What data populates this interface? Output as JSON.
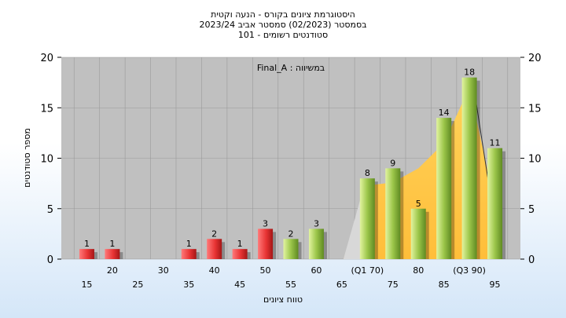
{
  "header": {
    "title_lines": [
      "היסטוגרמת ציונים בקורס - הנעה וקטית",
      "בסמסטר  (02/2023)  סמסטר אביב 2023/24",
      "סטודנטים רשומים - 101"
    ]
  },
  "chart_data": {
    "type": "bar",
    "legend_text": "Final_A : במשיווה",
    "xlabel": "טווח ציונים",
    "ylabel": "מספר סטודנטים",
    "ylim": [
      0,
      20
    ],
    "yticks": [
      0,
      5,
      10,
      15,
      20
    ],
    "grid": true,
    "x_ticks_top_row": [
      "20",
      "30",
      "40",
      "50",
      "60",
      "(Q1 70)",
      "80",
      "(Q3 90)"
    ],
    "x_ticks_bottom_row": [
      "15",
      "25",
      "35",
      "45",
      "55",
      "65",
      "75",
      "85",
      "95"
    ],
    "categories": [
      "15",
      "20",
      "25",
      "30",
      "35",
      "40",
      "45",
      "50",
      "55",
      "60",
      "65",
      "70",
      "75",
      "80",
      "85",
      "90",
      "95"
    ],
    "values": [
      1,
      1,
      0,
      0,
      1,
      2,
      1,
      3,
      2,
      3,
      0,
      8,
      9,
      5,
      14,
      18,
      11
    ],
    "data_labels": [
      "1",
      "1",
      "",
      "",
      "1",
      "2",
      "1",
      "3",
      "2",
      "3",
      "",
      "8",
      "9",
      "5",
      "14",
      "18",
      "11"
    ],
    "bar_colors": [
      "red",
      "red",
      "",
      "",
      "red",
      "red",
      "red",
      "red",
      "green",
      "green",
      "",
      "green",
      "green",
      "green",
      "green",
      "green",
      "green"
    ],
    "cumulative_curve": [
      0,
      0,
      0,
      0,
      0,
      0,
      0,
      0,
      0,
      0,
      0,
      7.3,
      7.6,
      9.0,
      11.5,
      17.0,
      5.5
    ],
    "colors": {
      "red_light": "#ff6a6a",
      "red_dark": "#b81a1a",
      "green_light": "#d3ec8c",
      "green_dark": "#6e9a2a",
      "area": "#ffc952",
      "plot_bg": "#c0c0c0"
    }
  }
}
